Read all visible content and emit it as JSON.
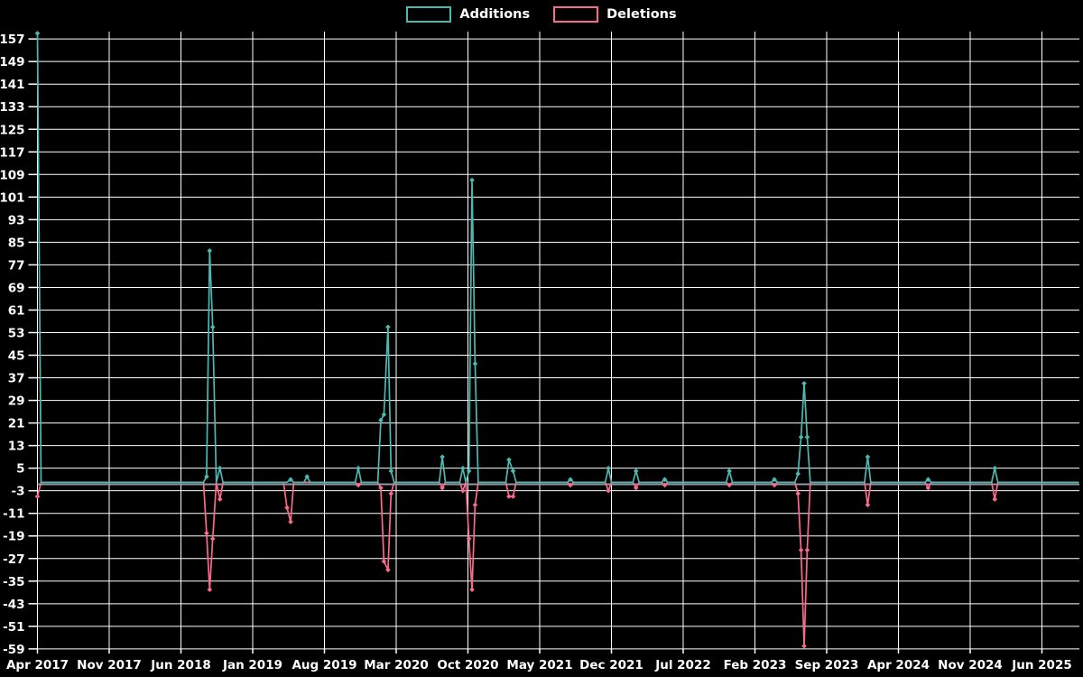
{
  "legend": {
    "additions_label": "Additions",
    "deletions_label": "Deletions"
  },
  "colors": {
    "background": "#000000",
    "grid": "#ffffff",
    "text": "#ffffff",
    "zero_line": "#8e99a5",
    "additions": "#4cb8b2",
    "deletions": "#fa6a8a"
  },
  "chart_data": {
    "type": "line",
    "title": "",
    "xlabel": "",
    "ylabel": "",
    "grid": true,
    "legend_position": "top-center",
    "x_unit": "months since Apr 2017 (weekly samples)",
    "x_axis": {
      "tick_months": [
        0,
        7,
        14,
        21,
        28,
        35,
        42,
        49,
        56,
        63,
        70,
        77,
        84,
        91,
        98
      ],
      "tick_labels": [
        "Apr 2017",
        "Nov 2017",
        "Jun 2018",
        "Jan 2019",
        "Aug 2019",
        "Mar 2020",
        "Oct 2020",
        "May 2021",
        "Dec 2021",
        "Jul 2022",
        "Feb 2023",
        "Sep 2023",
        "Apr 2024",
        "Nov 2024",
        "Jun 2025"
      ]
    },
    "y_axis": {
      "min": -59,
      "max": 157,
      "step": 8,
      "ticks": [
        157,
        149,
        141,
        133,
        125,
        117,
        109,
        101,
        93,
        85,
        77,
        69,
        61,
        53,
        45,
        37,
        29,
        21,
        13,
        5,
        -3,
        -11,
        -19,
        -27,
        -35,
        -43,
        -51,
        -59
      ]
    },
    "x": [
      0,
      0.35,
      16.2,
      16.5,
      16.8,
      17.1,
      17.45,
      17.8,
      18.1,
      24.0,
      24.35,
      24.7,
      25.0,
      26.0,
      26.3,
      26.6,
      31.0,
      31.3,
      31.6,
      33.2,
      33.5,
      33.8,
      34.2,
      34.5,
      34.8,
      39.2,
      39.5,
      39.8,
      41.2,
      41.5,
      41.8,
      42.1,
      42.4,
      42.7,
      43.0,
      45.7,
      46.0,
      46.4,
      46.7,
      51.7,
      52.0,
      52.3,
      55.4,
      55.7,
      56.0,
      58.1,
      58.4,
      58.7,
      60.9,
      61.2,
      61.5,
      67.2,
      67.5,
      67.8,
      71.6,
      71.9,
      72.2,
      73.9,
      74.2,
      74.5,
      74.8,
      75.1,
      75.4,
      80.7,
      81.0,
      81.3,
      86.6,
      86.9,
      87.2,
      93.1,
      93.4,
      93.7,
      101.6
    ],
    "series": [
      {
        "name": "Additions",
        "color": "#4cb8b2",
        "values": [
          159,
          0,
          0,
          2,
          82,
          55,
          0,
          5,
          0,
          0,
          0,
          1,
          0,
          0,
          2,
          0,
          0,
          5,
          0,
          0,
          22,
          24,
          55,
          4,
          0,
          0,
          9,
          0,
          0,
          5,
          0,
          4,
          107,
          42,
          0,
          0,
          8,
          4,
          0,
          0,
          1,
          0,
          0,
          5,
          0,
          0,
          4,
          0,
          0,
          1,
          0,
          0,
          4,
          0,
          0,
          1,
          0,
          0,
          3,
          16,
          35,
          16,
          0,
          0,
          9,
          0,
          0,
          1,
          0,
          0,
          5,
          0,
          0
        ]
      },
      {
        "name": "Deletions",
        "color": "#fa6a8a",
        "values": [
          -5,
          0,
          0,
          -18,
          -38,
          -20,
          0,
          -6,
          0,
          0,
          -9,
          -14,
          0,
          0,
          0,
          0,
          0,
          -1,
          0,
          0,
          -2,
          -28,
          -31,
          -4,
          0,
          0,
          -2,
          0,
          0,
          -3,
          0,
          -20,
          -38,
          -8,
          0,
          0,
          -5,
          -5,
          0,
          0,
          -1,
          0,
          0,
          -3,
          0,
          0,
          -2,
          0,
          0,
          -1,
          0,
          0,
          -1,
          0,
          0,
          -1,
          0,
          0,
          -4,
          -24,
          -58,
          -24,
          0,
          0,
          -8,
          0,
          0,
          -2,
          0,
          0,
          -6,
          0,
          0
        ]
      }
    ]
  }
}
